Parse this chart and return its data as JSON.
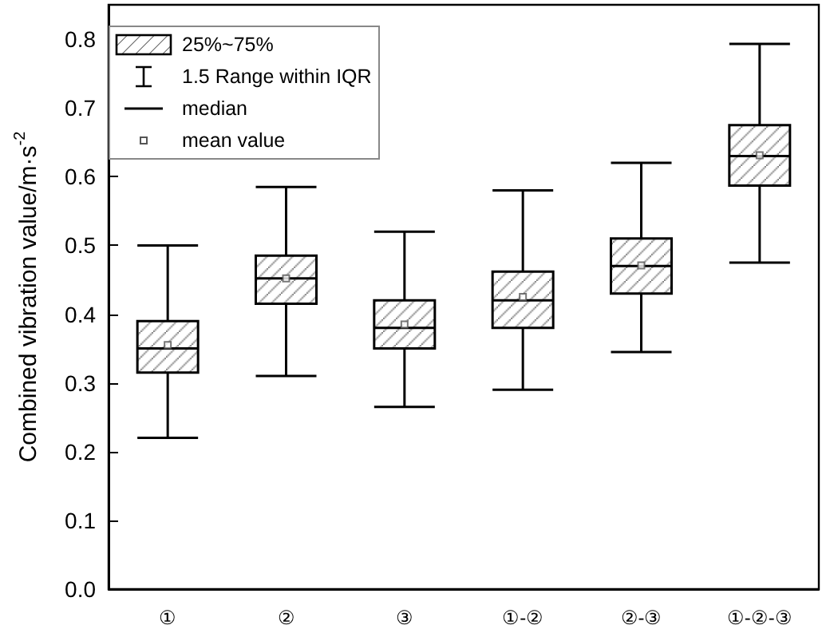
{
  "chart_data": {
    "type": "box",
    "ylabel": "Combined vibration value/m·s$^{-2}$",
    "categories": [
      "①",
      "②",
      "③",
      "①-②",
      "②-③",
      "①-②-③"
    ],
    "boxes": [
      {
        "low": 0.22,
        "q1": 0.315,
        "median": 0.35,
        "q3": 0.39,
        "high": 0.5,
        "mean": 0.355
      },
      {
        "low": 0.31,
        "q1": 0.415,
        "median": 0.452,
        "q3": 0.485,
        "high": 0.585,
        "mean": 0.452
      },
      {
        "low": 0.265,
        "q1": 0.35,
        "median": 0.38,
        "q3": 0.42,
        "high": 0.52,
        "mean": 0.385
      },
      {
        "low": 0.29,
        "q1": 0.38,
        "median": 0.42,
        "q3": 0.462,
        "high": 0.58,
        "mean": 0.425
      },
      {
        "low": 0.345,
        "q1": 0.43,
        "median": 0.47,
        "q3": 0.51,
        "high": 0.62,
        "mean": 0.471
      },
      {
        "low": 0.475,
        "q1": 0.587,
        "median": 0.63,
        "q3": 0.675,
        "high": 0.793,
        "mean": 0.631
      }
    ],
    "color": "#000000",
    "annotations": [
      "25%~75%",
      "1.5 Range within IQR",
      "median",
      "mean value"
    ],
    "ylim": [
      0,
      0.85
    ],
    "yticks": [
      {
        "value": 0,
        "label": "0.0"
      },
      0.1,
      0.2,
      0.3,
      0.4,
      0.5,
      0.6,
      0.7,
      0.8
    ],
    "grid": false
  }
}
